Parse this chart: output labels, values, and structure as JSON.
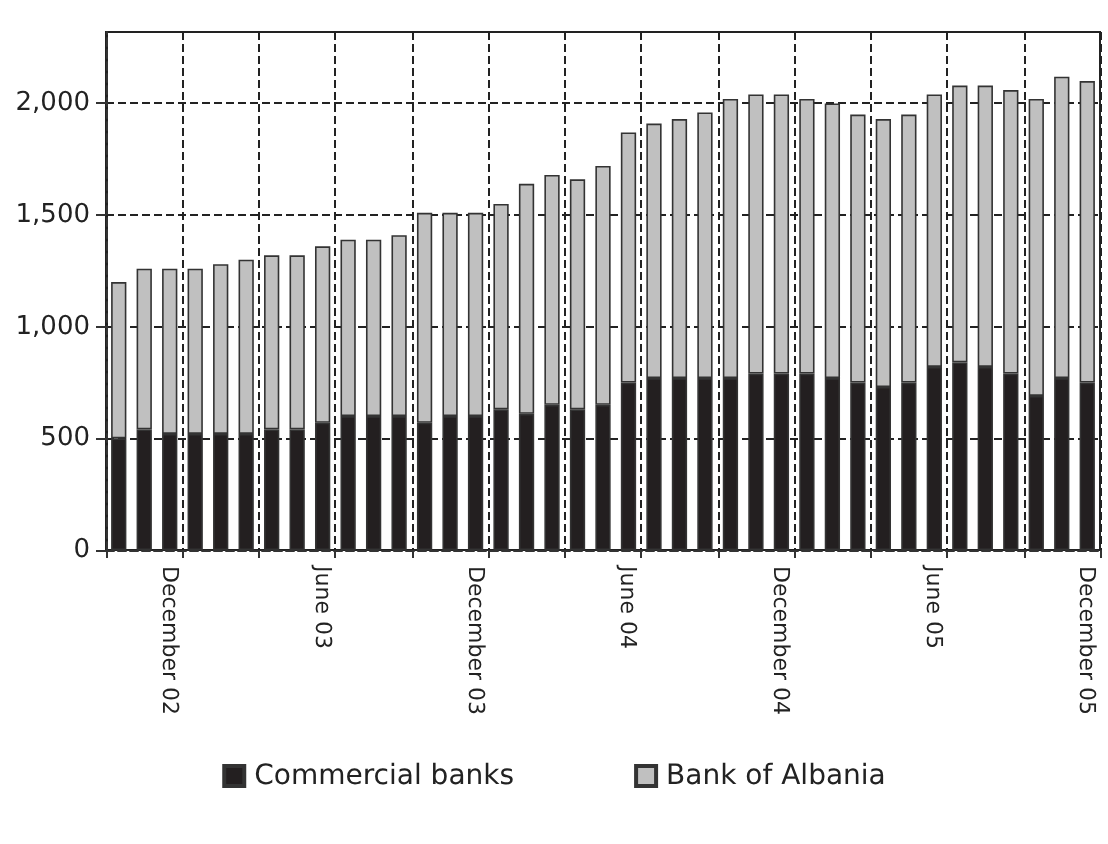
{
  "chart_data": {
    "type": "bar",
    "stacked": true,
    "categories": [
      null,
      null,
      "December 02",
      null,
      null,
      null,
      null,
      null,
      "June 03",
      null,
      null,
      null,
      null,
      null,
      "December 03",
      null,
      null,
      null,
      null,
      null,
      "June 04",
      null,
      null,
      null,
      null,
      null,
      "December 04",
      null,
      null,
      null,
      null,
      null,
      "June 05",
      null,
      null,
      null,
      null,
      null,
      "December 05"
    ],
    "series": [
      {
        "name": "Commercial banks",
        "color": "#231f20",
        "values": [
          500,
          540,
          520,
          520,
          520,
          520,
          540,
          540,
          570,
          600,
          600,
          600,
          570,
          600,
          600,
          630,
          610,
          650,
          630,
          650,
          750,
          770,
          770,
          770,
          770,
          790,
          790,
          790,
          770,
          750,
          730,
          750,
          820,
          840,
          820,
          790,
          690,
          770,
          750
        ]
      },
      {
        "name": "Bank of Albania",
        "color": "#c0c0c0",
        "values": [
          700,
          720,
          740,
          740,
          760,
          780,
          780,
          780,
          790,
          790,
          790,
          810,
          940,
          910,
          910,
          920,
          1030,
          1030,
          1030,
          1070,
          1120,
          1140,
          1160,
          1190,
          1250,
          1250,
          1250,
          1230,
          1230,
          1200,
          1200,
          1200,
          1220,
          1240,
          1260,
          1270,
          1330,
          1350,
          1350
        ]
      }
    ],
    "ylim": [
      0,
      2320
    ],
    "yticks": [
      0,
      500,
      {
        "value": 1000,
        "label": "1,000"
      },
      {
        "value": 1500,
        "label": "1,500"
      },
      {
        "value": 2000,
        "label": "2,000"
      }
    ],
    "grid": true,
    "legend": "bottom"
  }
}
